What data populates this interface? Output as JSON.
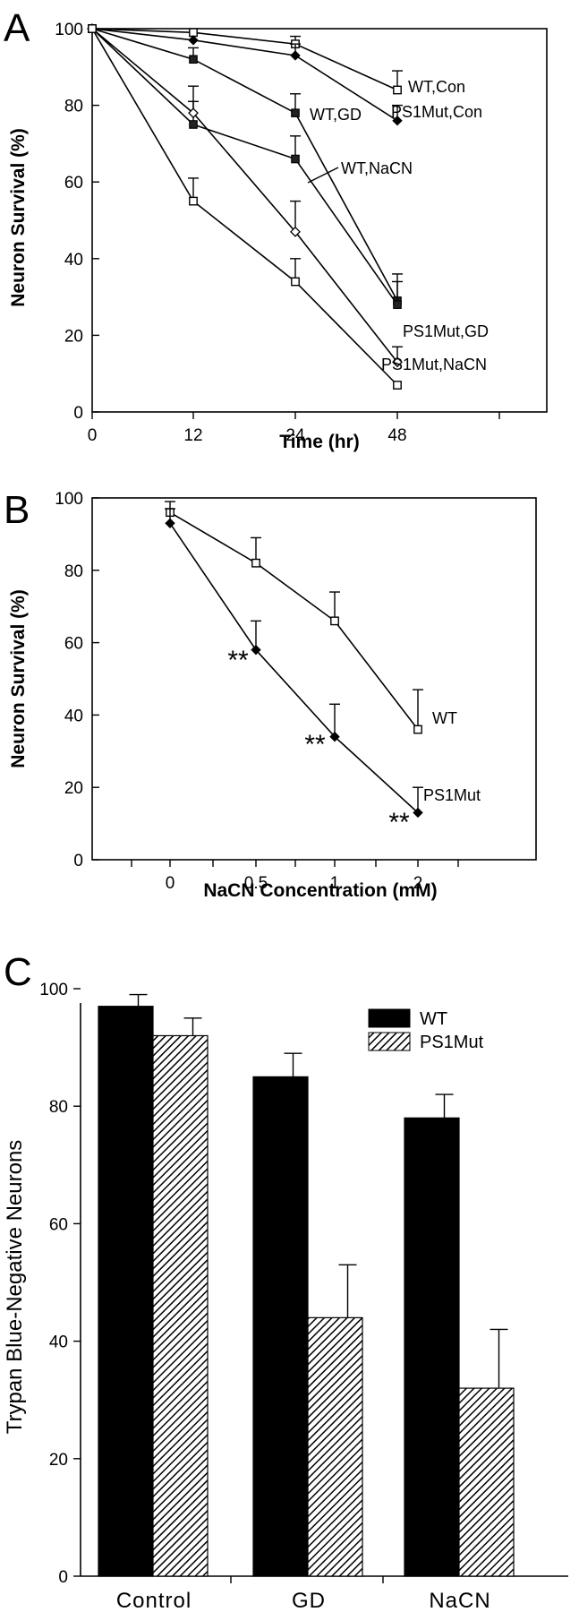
{
  "chart_data": [
    {
      "panel": "A",
      "type": "line",
      "xlabel": "Time (hr)",
      "ylabel": "Neuron Survival (%)",
      "x_ticks": [
        "0",
        "12",
        "24",
        "48"
      ],
      "y_ticks": [
        "0",
        "20",
        "40",
        "60",
        "80",
        "100"
      ],
      "ylim": [
        0,
        100
      ],
      "series": [
        {
          "name": "WT,Con",
          "marker": "open-square",
          "values": [
            100,
            99,
            96,
            84
          ],
          "errors": [
            0,
            0,
            2,
            5
          ]
        },
        {
          "name": "PS1Mut,Con",
          "marker": "filled-diamond",
          "values": [
            100,
            97,
            93,
            76
          ],
          "errors": [
            0,
            0,
            3,
            4
          ]
        },
        {
          "name": "WT,GD",
          "marker": "filled-square",
          "values": [
            100,
            92,
            78,
            29
          ],
          "errors": [
            0,
            3,
            5,
            7
          ]
        },
        {
          "name": "WT,NaCN",
          "marker": "filled-square",
          "values": [
            100,
            75,
            66,
            28
          ],
          "errors": [
            0,
            6,
            6,
            6
          ]
        },
        {
          "name": "PS1Mut,GD",
          "marker": "open-diamond",
          "values": [
            100,
            78,
            47,
            13
          ],
          "errors": [
            0,
            7,
            8,
            4
          ]
        },
        {
          "name": "PS1Mut,NaCN",
          "marker": "open-square",
          "values": [
            100,
            55,
            34,
            7
          ],
          "errors": [
            0,
            6,
            6,
            0
          ]
        }
      ]
    },
    {
      "panel": "B",
      "type": "line",
      "xlabel": "NaCN Concentration (mM)",
      "ylabel": "Neuron Survival (%)",
      "x_ticks": [
        "0",
        "0.5",
        "1",
        "2"
      ],
      "y_ticks": [
        "0",
        "20",
        "40",
        "60",
        "80",
        "100"
      ],
      "ylim": [
        0,
        100
      ],
      "series": [
        {
          "name": "WT",
          "marker": "open-square",
          "values": [
            96,
            82,
            66,
            36
          ],
          "errors": [
            3,
            7,
            8,
            11
          ]
        },
        {
          "name": "PS1Mut",
          "marker": "filled-diamond",
          "values": [
            93,
            58,
            34,
            13
          ],
          "errors": [
            4,
            8,
            9,
            7
          ]
        }
      ],
      "annotations": [
        {
          "text": "**",
          "category": "0.5"
        },
        {
          "text": "**",
          "category": "1"
        },
        {
          "text": "**",
          "category": "2"
        }
      ]
    },
    {
      "panel": "C",
      "type": "bar",
      "ylabel": "Trypan Blue-Negative Neurons",
      "categories": [
        "Control",
        "GD",
        "NaCN"
      ],
      "y_ticks": [
        "0",
        "20",
        "40",
        "60",
        "80",
        "100"
      ],
      "ylim": [
        0,
        100
      ],
      "legend_position": "top-right",
      "series": [
        {
          "name": "WT",
          "fill": "solid-black",
          "values": [
            97,
            85,
            78
          ],
          "errors": [
            2,
            4,
            4
          ]
        },
        {
          "name": "PS1Mut",
          "fill": "hatched",
          "values": [
            92,
            44,
            32
          ],
          "errors": [
            3,
            9,
            10
          ]
        }
      ]
    }
  ]
}
